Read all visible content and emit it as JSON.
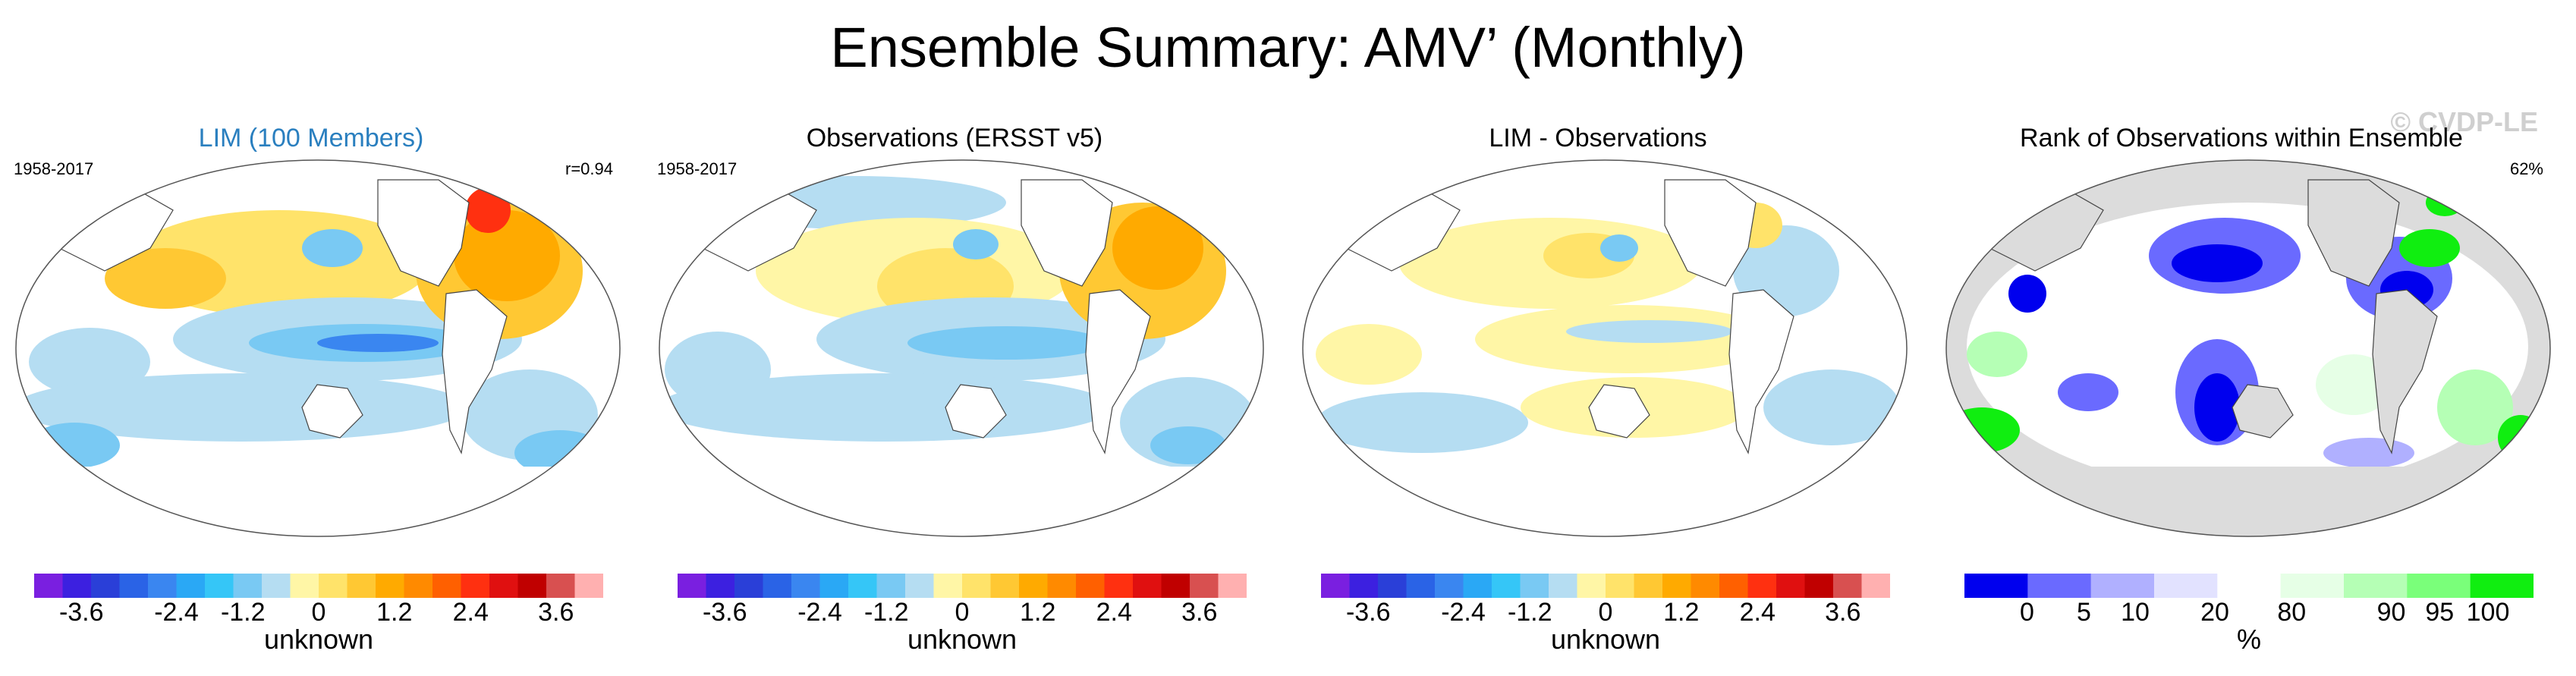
{
  "figure": {
    "title": "Ensemble Summary: AMV’ (Monthly)",
    "watermark": "© CVDP-LE"
  },
  "panels": [
    {
      "title": "LIM (100 Members)",
      "title_color": "#2a7fbf",
      "period": "1958-2017",
      "stat": "r=0.94",
      "colorbar": {
        "label": "unknown",
        "colors": [
          "#7a1fe0",
          "#3c20e0",
          "#2a3fd8",
          "#2a63e6",
          "#3a86f0",
          "#2aa8f5",
          "#35c6f7",
          "#79c9f3",
          "#b5ddf2",
          "#fff6a6",
          "#ffe36a",
          "#ffc833",
          "#ffaa00",
          "#ff8a00",
          "#ff6000",
          "#ff3010",
          "#e01010",
          "#c00000",
          "#d85050",
          "#ffb0b0"
        ],
        "ticks": [
          "-3.6",
          "-2.4",
          "-1.2",
          "0",
          "1.2",
          "2.4",
          "3.6"
        ]
      }
    },
    {
      "title": "Observations (ERSST v5)",
      "title_color": "#000000",
      "period": "1958-2017",
      "stat": "",
      "colorbar": {
        "label": "unknown",
        "colors": [
          "#7a1fe0",
          "#3c20e0",
          "#2a3fd8",
          "#2a63e6",
          "#3a86f0",
          "#2aa8f5",
          "#35c6f7",
          "#79c9f3",
          "#b5ddf2",
          "#fff6a6",
          "#ffe36a",
          "#ffc833",
          "#ffaa00",
          "#ff8a00",
          "#ff6000",
          "#ff3010",
          "#e01010",
          "#c00000",
          "#d85050",
          "#ffb0b0"
        ],
        "ticks": [
          "-3.6",
          "-2.4",
          "-1.2",
          "0",
          "1.2",
          "2.4",
          "3.6"
        ]
      }
    },
    {
      "title": "LIM - Observations",
      "title_color": "#000000",
      "period": "",
      "stat": "",
      "colorbar": {
        "label": "unknown",
        "colors": [
          "#7a1fe0",
          "#3c20e0",
          "#2a3fd8",
          "#2a63e6",
          "#3a86f0",
          "#2aa8f5",
          "#35c6f7",
          "#79c9f3",
          "#b5ddf2",
          "#fff6a6",
          "#ffe36a",
          "#ffc833",
          "#ffaa00",
          "#ff8a00",
          "#ff6000",
          "#ff3010",
          "#e01010",
          "#c00000",
          "#d85050",
          "#ffb0b0"
        ],
        "ticks": [
          "-3.6",
          "-2.4",
          "-1.2",
          "0",
          "1.2",
          "2.4",
          "3.6"
        ]
      }
    },
    {
      "title": "Rank of Observations within Ensemble",
      "title_color": "#000000",
      "period": "",
      "stat": "62%",
      "colorbar": {
        "label": "%",
        "colors": [
          "#0000ee",
          "#6a6aff",
          "#b0b0ff",
          "#e2e2ff",
          "#ffffff",
          "#e6ffe6",
          "#b5ffb5",
          "#7aff7a",
          "#10ee10"
        ],
        "ticks": [
          "0",
          "5",
          "10",
          "20",
          "80",
          "90",
          "95",
          "100"
        ]
      }
    }
  ]
}
